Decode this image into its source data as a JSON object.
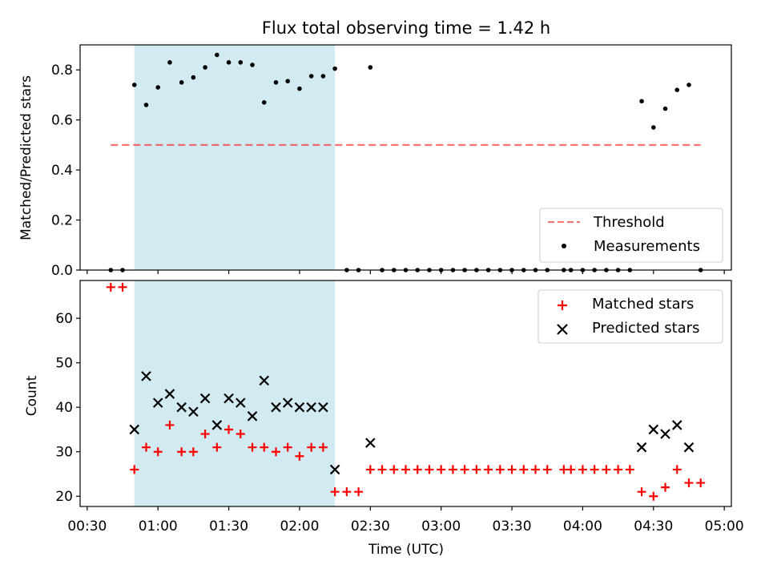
{
  "figure": {
    "title": "Flux total observing time = 1.42 h"
  },
  "colors": {
    "shade": "#add8e6",
    "threshold": "#ff0000",
    "measurement": "#000000",
    "matched": "#ff0000",
    "predicted": "#000000"
  },
  "chart_data": [
    {
      "type": "scatter",
      "title": "Flux total observing time = 1.42 h",
      "ylabel": "Matched/Predicted stars",
      "xlabel": "",
      "xlim": [
        "00:27",
        "05:03"
      ],
      "ylim": [
        0,
        0.9
      ],
      "yticks": [
        0.0,
        0.2,
        0.4,
        0.6,
        0.8
      ],
      "ytick_labels": [
        "0.0",
        "0.2",
        "0.4",
        "0.6",
        "0.8"
      ],
      "xticks": [
        "00:30",
        "01:00",
        "01:30",
        "02:00",
        "02:30",
        "03:00",
        "03:30",
        "04:00",
        "04:30",
        "05:00"
      ],
      "shaded_span": [
        "00:50",
        "02:15"
      ],
      "threshold": {
        "label": "Threshold",
        "value": 0.5,
        "x_range": [
          "00:40",
          "04:50"
        ]
      },
      "legend": {
        "position": "lower right",
        "entries": [
          "Threshold",
          "Measurements"
        ]
      },
      "series": [
        {
          "name": "Measurements",
          "marker": "dot",
          "x": [
            "00:40",
            "00:45",
            "00:50",
            "00:55",
            "01:00",
            "01:05",
            "01:10",
            "01:15",
            "01:20",
            "01:25",
            "01:30",
            "01:35",
            "01:40",
            "01:45",
            "01:50",
            "01:55",
            "02:00",
            "02:05",
            "02:10",
            "02:15",
            "02:20",
            "02:25",
            "02:30",
            "02:35",
            "02:40",
            "02:45",
            "02:50",
            "02:55",
            "03:00",
            "03:05",
            "03:10",
            "03:15",
            "03:20",
            "03:25",
            "03:30",
            "03:35",
            "03:40",
            "03:45",
            "03:52",
            "03:55",
            "04:00",
            "04:05",
            "04:10",
            "04:15",
            "04:20",
            "04:25",
            "04:30",
            "04:35",
            "04:40",
            "04:45",
            "04:50"
          ],
          "y": [
            0,
            0,
            0.74,
            0.66,
            0.73,
            0.83,
            0.75,
            0.77,
            0.81,
            0.86,
            0.83,
            0.83,
            0.82,
            0.67,
            0.75,
            0.755,
            0.725,
            0.775,
            0.775,
            0.805,
            0,
            0,
            0.81,
            0,
            0,
            0,
            0,
            0,
            0,
            0,
            0,
            0,
            0,
            0,
            0,
            0,
            0,
            0,
            0,
            0,
            0,
            0,
            0,
            0,
            0,
            0.675,
            0.57,
            0.645,
            0.72,
            0.74,
            0
          ]
        }
      ]
    },
    {
      "type": "scatter",
      "ylabel": "Count",
      "xlabel": "Time (UTC)",
      "xlim": [
        "00:27",
        "05:03"
      ],
      "ylim": [
        17.7,
        68.5
      ],
      "yticks": [
        20,
        30,
        40,
        50,
        60
      ],
      "ytick_labels": [
        "20",
        "30",
        "40",
        "50",
        "60"
      ],
      "xticks": [
        "00:30",
        "01:00",
        "01:30",
        "02:00",
        "02:30",
        "03:00",
        "03:30",
        "04:00",
        "04:30",
        "05:00"
      ],
      "xtick_labels": [
        "00:30",
        "01:00",
        "01:30",
        "02:00",
        "02:30",
        "03:00",
        "03:30",
        "04:00",
        "04:30",
        "05:00"
      ],
      "shaded_span": [
        "00:50",
        "02:15"
      ],
      "legend": {
        "position": "upper right",
        "entries": [
          "Matched stars",
          "Predicted stars"
        ]
      },
      "series": [
        {
          "name": "Matched stars",
          "marker": "plus",
          "x": [
            "00:40",
            "00:45",
            "00:50",
            "00:55",
            "01:00",
            "01:05",
            "01:10",
            "01:15",
            "01:20",
            "01:25",
            "01:30",
            "01:35",
            "01:40",
            "01:45",
            "01:50",
            "01:55",
            "02:00",
            "02:05",
            "02:10",
            "02:15",
            "02:20",
            "02:25",
            "02:30",
            "02:35",
            "02:40",
            "02:45",
            "02:50",
            "02:55",
            "03:00",
            "03:05",
            "03:10",
            "03:15",
            "03:20",
            "03:25",
            "03:30",
            "03:35",
            "03:40",
            "03:45",
            "03:52",
            "03:55",
            "04:00",
            "04:05",
            "04:10",
            "04:15",
            "04:20",
            "04:25",
            "04:30",
            "04:35",
            "04:40",
            "04:45",
            "04:50"
          ],
          "y": [
            67,
            67,
            26,
            31,
            30,
            36,
            30,
            30,
            34,
            31,
            35,
            34,
            31,
            31,
            30,
            31,
            29,
            31,
            31,
            21,
            21,
            21,
            26,
            26,
            26,
            26,
            26,
            26,
            26,
            26,
            26,
            26,
            26,
            26,
            26,
            26,
            26,
            26,
            26,
            26,
            26,
            26,
            26,
            26,
            26,
            21,
            20,
            22,
            26,
            23,
            23
          ]
        },
        {
          "name": "Predicted stars",
          "marker": "x",
          "x": [
            "00:50",
            "00:55",
            "01:00",
            "01:05",
            "01:10",
            "01:15",
            "01:20",
            "01:25",
            "01:30",
            "01:35",
            "01:40",
            "01:45",
            "01:50",
            "01:55",
            "02:00",
            "02:05",
            "02:10",
            "02:15",
            "02:30",
            "04:25",
            "04:30",
            "04:35",
            "04:40",
            "04:45"
          ],
          "y": [
            35,
            47,
            41,
            43,
            40,
            39,
            42,
            36,
            42,
            41,
            38,
            46,
            40,
            41,
            40,
            40,
            40,
            26,
            32,
            31,
            35,
            34,
            36,
            31
          ]
        }
      ]
    }
  ]
}
